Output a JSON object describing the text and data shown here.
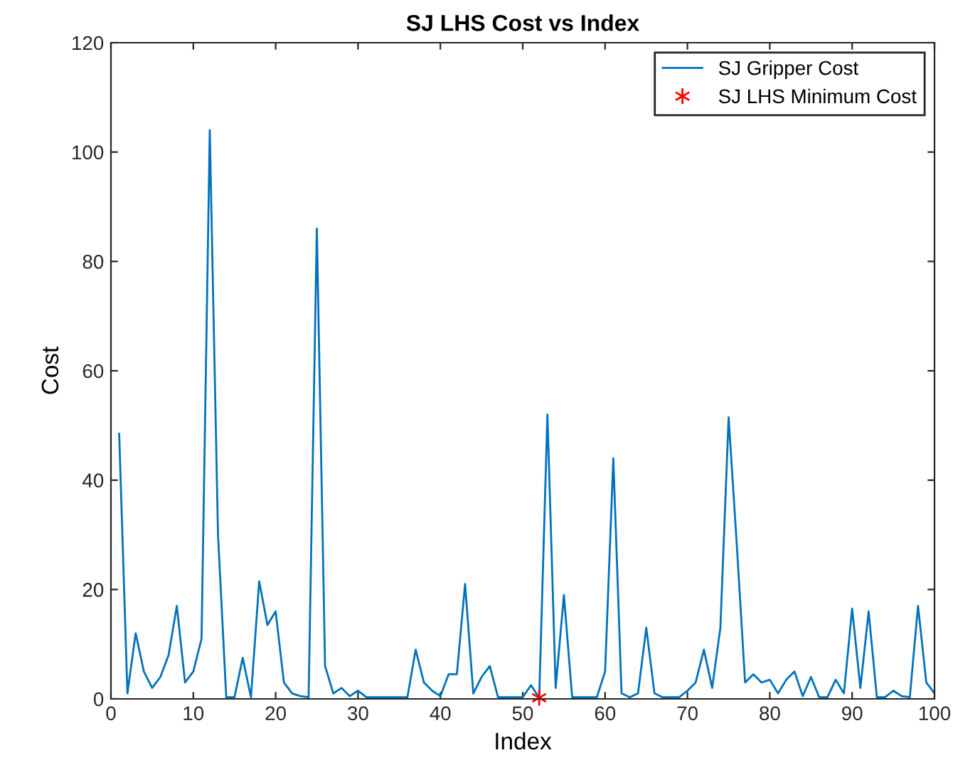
{
  "chart_data": {
    "type": "line",
    "title": "SJ LHS Cost vs Index",
    "xlabel": "Index",
    "ylabel": "Cost",
    "xlim": [
      0,
      100
    ],
    "ylim": [
      0,
      120
    ],
    "xticks": [
      0,
      10,
      20,
      30,
      40,
      50,
      60,
      70,
      80,
      90,
      100
    ],
    "yticks": [
      0,
      20,
      40,
      60,
      80,
      100,
      120
    ],
    "grid": false,
    "legend": "top right",
    "series": [
      {
        "name": "SJ Gripper Cost",
        "color": "#0072bd",
        "marker": "none",
        "line_style": "solid",
        "x": [
          1,
          2,
          3,
          4,
          5,
          6,
          7,
          8,
          9,
          10,
          11,
          12,
          13,
          14,
          15,
          16,
          17,
          18,
          19,
          20,
          21,
          22,
          23,
          24,
          25,
          26,
          27,
          28,
          29,
          30,
          31,
          32,
          33,
          34,
          35,
          36,
          37,
          38,
          39,
          40,
          41,
          42,
          43,
          44,
          45,
          46,
          47,
          48,
          49,
          50,
          51,
          52,
          53,
          54,
          55,
          56,
          57,
          58,
          59,
          60,
          61,
          62,
          63,
          64,
          65,
          66,
          67,
          68,
          69,
          70,
          71,
          72,
          73,
          74,
          75,
          76,
          77,
          78,
          79,
          80,
          81,
          82,
          83,
          84,
          85,
          86,
          87,
          88,
          89,
          90,
          91,
          92,
          93,
          94,
          95,
          96,
          97,
          98,
          99,
          100
        ],
        "values": [
          48.5,
          1,
          12,
          5,
          2,
          4,
          8,
          17,
          3,
          5,
          11,
          104,
          30,
          0.3,
          0.3,
          7.5,
          0.3,
          21.5,
          13.5,
          16,
          3,
          1,
          0.5,
          0.3,
          86,
          6,
          1,
          2,
          0.5,
          1.5,
          0.3,
          0.3,
          0.3,
          0.3,
          0.3,
          0.3,
          9,
          3,
          1.5,
          0.5,
          4.5,
          4.5,
          21,
          1,
          4,
          6,
          0.3,
          0.3,
          0.3,
          0.3,
          2.5,
          0.2,
          52,
          2,
          19,
          0.3,
          0.3,
          0.3,
          0.3,
          5,
          44,
          1,
          0.3,
          1,
          13,
          1,
          0.3,
          0.3,
          0.3,
          1.5,
          3,
          9,
          2,
          13,
          51.5,
          28,
          3,
          4.5,
          3,
          3.5,
          1,
          3.5,
          5,
          0.5,
          4,
          0.3,
          0.3,
          3.5,
          1,
          16.5,
          2,
          16,
          0.3,
          0.3,
          1.5,
          0.5,
          0.3,
          17,
          3,
          1
        ]
      },
      {
        "name": "SJ LHS Minimum Cost",
        "type": "scatter",
        "color": "#ff0000",
        "marker": "cross",
        "x": [
          52
        ],
        "values": [
          0.2
        ]
      }
    ]
  }
}
